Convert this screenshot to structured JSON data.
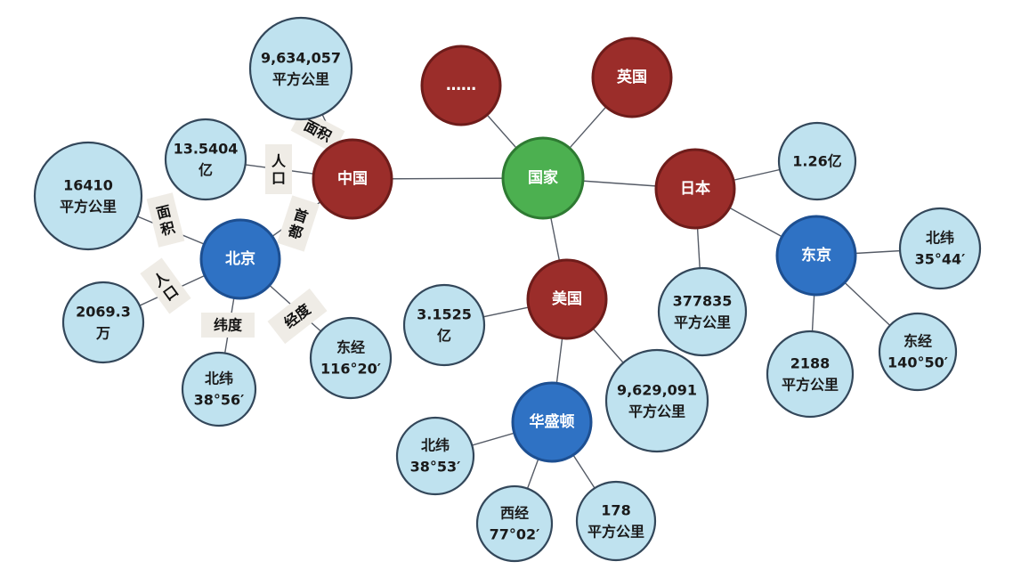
{
  "nodes": {
    "root": {
      "label": "国家"
    },
    "more": {
      "label": "……"
    },
    "uk": {
      "label": "英国"
    },
    "china": {
      "label": "中国"
    },
    "japan": {
      "label": "日本"
    },
    "usa": {
      "label": "美国"
    },
    "beijing": {
      "label": "北京"
    },
    "tokyo": {
      "label": "东京"
    },
    "washington": {
      "label": "华盛顿"
    },
    "china_area": {
      "lines": [
        "9,634,057",
        "平方公里"
      ]
    },
    "china_pop": {
      "lines": [
        "13.5404",
        "亿"
      ]
    },
    "beijing_area": {
      "lines": [
        "16410",
        "平方公里"
      ]
    },
    "beijing_pop": {
      "lines": [
        "2069.3",
        "万"
      ]
    },
    "beijing_lat": {
      "lines": [
        "北纬",
        "38°56′"
      ]
    },
    "beijing_lon": {
      "lines": [
        "东经",
        "116°20′"
      ]
    },
    "japan_pop": {
      "lines": [
        "1.26亿"
      ]
    },
    "japan_area": {
      "lines": [
        "377835",
        "平方公里"
      ]
    },
    "tokyo_lat": {
      "lines": [
        "北纬",
        "35°44′"
      ]
    },
    "tokyo_area": {
      "lines": [
        "2188",
        "平方公里"
      ]
    },
    "tokyo_lon": {
      "lines": [
        "东经",
        "140°50′"
      ]
    },
    "usa_pop": {
      "lines": [
        "3.1525",
        "亿"
      ]
    },
    "usa_area": {
      "lines": [
        "9,629,091",
        "平方公里"
      ]
    },
    "wash_lat": {
      "lines": [
        "北纬",
        "38°53′"
      ]
    },
    "wash_lon": {
      "lines": [
        "西经",
        "77°02′"
      ]
    },
    "wash_area": {
      "lines": [
        "178",
        "平方公里"
      ]
    }
  },
  "edge_labels": {
    "china_area": "面积",
    "china_pop": "人口",
    "china_capital": "首都",
    "beijing_area": "面积",
    "beijing_pop": "人口",
    "beijing_lat": "纬度",
    "beijing_lon": "经度"
  },
  "colors": {
    "root": "#4cb050",
    "country": "#9b2d2a",
    "capital": "#2f72c4",
    "attribute": "#bfe2ef"
  }
}
